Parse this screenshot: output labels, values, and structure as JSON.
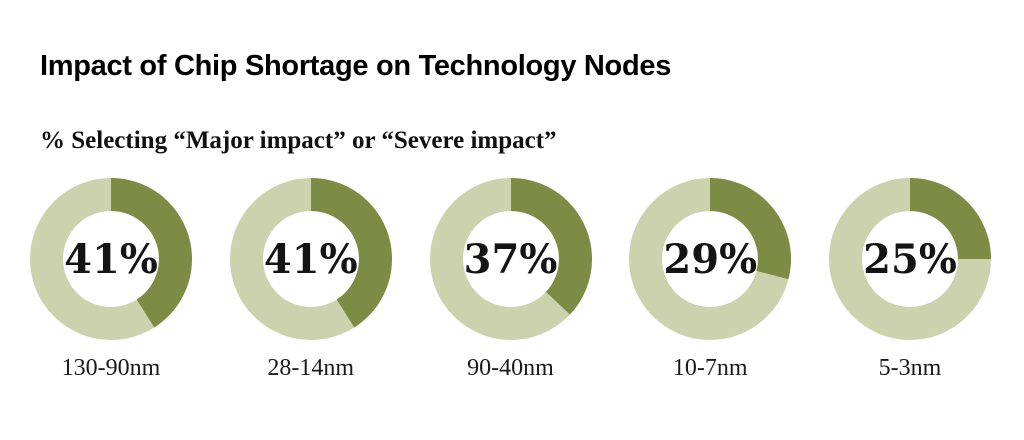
{
  "chart_data": {
    "type": "pie",
    "subtype": "donut_small_multiples",
    "title": "Impact of Chip Shortage on Technology Nodes",
    "subtitle": "% Selecting “Major impact” or “Severe impact”",
    "unit": "%",
    "categories": [
      "130-90nm",
      "28-14nm",
      "90-40nm",
      "10-7nm",
      "5-3nm"
    ],
    "values": [
      41,
      41,
      37,
      29,
      25
    ],
    "value_labels": [
      "41%",
      "41%",
      "37%",
      "29%",
      "25%"
    ],
    "donut": {
      "start_angle_deg": 0,
      "direction": "clockwise",
      "filled_color": "#7d8b45",
      "remainder_color": "#cdd2ae",
      "value_text_color": "#141414"
    },
    "legend": "none",
    "background": "#ffffff"
  }
}
